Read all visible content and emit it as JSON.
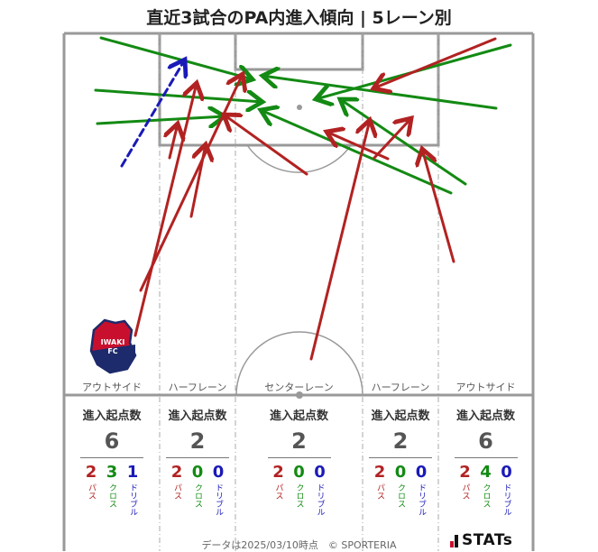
{
  "title": "直近3試合のPA内進入傾向 | 5レーン別",
  "lanes": [
    {
      "label": "アウトサイド",
      "header": "進入起点数",
      "total": "6",
      "pass": "2",
      "cross": "3",
      "dribble": "1"
    },
    {
      "label": "ハーフレーン",
      "header": "進入起点数",
      "total": "2",
      "pass": "2",
      "cross": "0",
      "dribble": "0"
    },
    {
      "label": "センターレーン",
      "header": "進入起点数",
      "total": "2",
      "pass": "2",
      "cross": "0",
      "dribble": "0"
    },
    {
      "label": "ハーフレーン",
      "header": "進入起点数",
      "total": "2",
      "pass": "2",
      "cross": "0",
      "dribble": "0"
    },
    {
      "label": "アウトサイド",
      "header": "進入起点数",
      "total": "6",
      "pass": "2",
      "cross": "4",
      "dribble": "0"
    }
  ],
  "type_labels": {
    "pass": "パス",
    "cross": "クロス",
    "dribble": "ドリブル"
  },
  "colors": {
    "pass": "#b22222",
    "cross": "#138a13",
    "dribble": "#1a1ab8",
    "pitch_line": "#999999"
  },
  "badge": {
    "text_top": "IWAKI",
    "text_bottom": "FC"
  },
  "footer": "データは2025/03/10時点　© SPORTERIA",
  "brand": "STATs",
  "arrows": {
    "pass": [
      [
        150,
        372,
        218,
        92
      ],
      [
        156,
        322,
        269,
        82
      ],
      [
        188,
        175,
        197,
        137
      ],
      [
        212,
        240,
        228,
        160
      ],
      [
        340,
        193,
        248,
        127
      ],
      [
        345,
        398,
        410,
        133
      ],
      [
        430,
        176,
        362,
        146
      ],
      [
        503,
        290,
        468,
        165
      ],
      [
        415,
        175,
        456,
        131
      ],
      [
        549,
        43,
        414,
        98
      ]
    ],
    "cross": [
      [
        112,
        42,
        280,
        88
      ],
      [
        106,
        100,
        291,
        113
      ],
      [
        108,
        137,
        249,
        129
      ],
      [
        550,
        120,
        291,
        84
      ],
      [
        566,
        50,
        350,
        110
      ],
      [
        500,
        214,
        289,
        122
      ],
      [
        516,
        204,
        377,
        110
      ]
    ],
    "dribble": [
      [
        135,
        184,
        205,
        66
      ]
    ]
  }
}
